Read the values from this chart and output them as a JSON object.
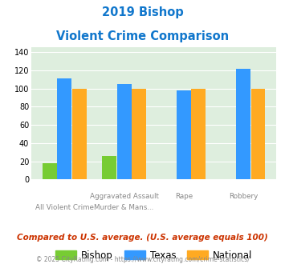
{
  "title_line1": "2019 Bishop",
  "title_line2": "Violent Crime Comparison",
  "bishop": [
    18,
    26,
    0,
    0
  ],
  "texas": [
    111,
    105,
    98,
    122
  ],
  "national": [
    100,
    100,
    100,
    100
  ],
  "bishop_color": "#77cc33",
  "texas_color": "#3399ff",
  "national_color": "#ffaa22",
  "bg_color": "#deeede",
  "ylim": [
    0,
    145
  ],
  "yticks": [
    0,
    20,
    40,
    60,
    80,
    100,
    120,
    140
  ],
  "title_color": "#1177cc",
  "title_fontsize": 10.5,
  "subtitle_note": "Compared to U.S. average. (U.S. average equals 100)",
  "footer": "© 2025 CityRating.com - https://www.cityrating.com/crime-statistics/",
  "subtitle_color": "#cc3300",
  "footer_color": "#888888",
  "top_labels": [
    "",
    "Aggravated Assault",
    "Rape",
    "Robbery"
  ],
  "bottom_labels": [
    "All Violent Crime",
    "Murder & Mans...",
    "",
    ""
  ]
}
